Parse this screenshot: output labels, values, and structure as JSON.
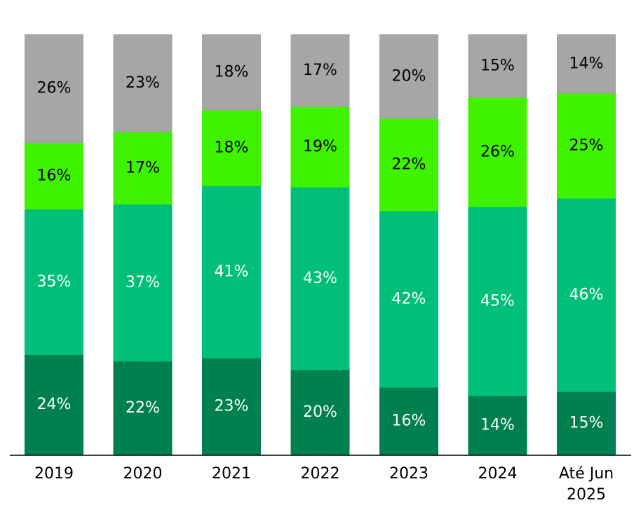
{
  "chart_data": {
    "type": "bar",
    "stacked": true,
    "percent": true,
    "categories": [
      "2019",
      "2020",
      "2021",
      "2022",
      "2023",
      "2024",
      [
        "Até Jun",
        "2025"
      ]
    ],
    "series": [
      {
        "values": [
          24,
          22,
          23,
          20,
          16,
          14,
          15
        ],
        "color": "#008050",
        "label_color": "#ffffff"
      },
      {
        "values": [
          35,
          37,
          41,
          43,
          42,
          45,
          46
        ],
        "color": "#00BF78",
        "label_color": "#ffffff"
      },
      {
        "values": [
          16,
          17,
          18,
          19,
          22,
          26,
          25
        ],
        "color": "#3FF200",
        "label_color": "#000000"
      },
      {
        "values": [
          26,
          23,
          18,
          17,
          20,
          15,
          14
        ],
        "color": "#A6A6A6",
        "label_color": "#000000"
      }
    ],
    "data_label_suffix": "%",
    "ylim": [
      0,
      100
    ],
    "grid": false,
    "legend": "none"
  }
}
